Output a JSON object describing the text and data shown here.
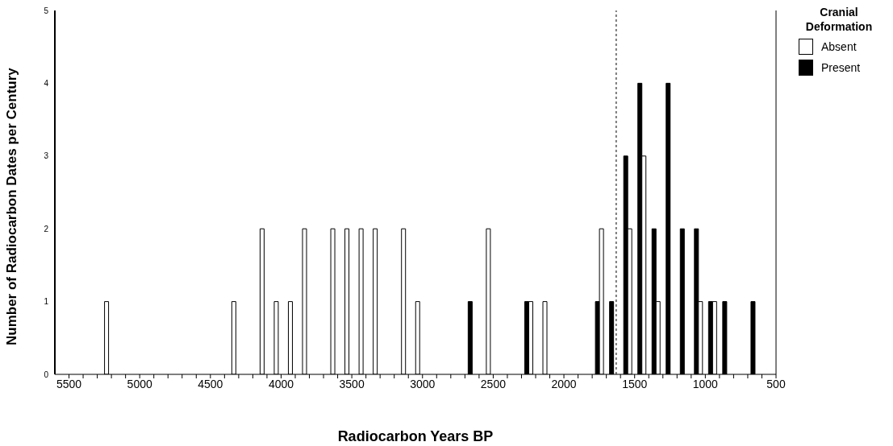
{
  "chart_data": {
    "type": "bar",
    "xlabel": "Radiocarbon Years BP",
    "ylabel": "Number of Radiocarbon Dates per Century",
    "legend_title": "Cranial Deformation",
    "x": [
      5250,
      4350,
      4150,
      4050,
      3950,
      3850,
      3650,
      3550,
      3450,
      3350,
      3150,
      3050,
      2650,
      2550,
      2250,
      2150,
      1750,
      1650,
      1550,
      1450,
      1350,
      1250,
      1150,
      1050,
      950,
      850,
      650
    ],
    "series": [
      {
        "name": "Present",
        "color": "#000000",
        "values": [
          0,
          0,
          0,
          0,
          0,
          0,
          0,
          0,
          0,
          0,
          0,
          0,
          1,
          0,
          1,
          0,
          1,
          1,
          3,
          4,
          2,
          4,
          2,
          2,
          1,
          1,
          1
        ]
      },
      {
        "name": "Absent",
        "color": "#ffffff",
        "values": [
          1,
          1,
          2,
          1,
          1,
          2,
          2,
          2,
          2,
          2,
          2,
          1,
          0,
          2,
          1,
          1,
          2,
          0,
          2,
          3,
          1,
          0,
          0,
          1,
          1,
          0,
          0
        ]
      }
    ],
    "xlim": [
      5600,
      500
    ],
    "xticks": [
      5500,
      {
        "value": 5400,
        "label": null
      },
      {
        "value": 5300,
        "label": null
      },
      {
        "value": 5200,
        "label": null
      },
      {
        "value": 5100,
        "label": null
      },
      5000,
      {
        "value": 4900,
        "label": null
      },
      {
        "value": 4800,
        "label": null
      },
      {
        "value": 4700,
        "label": null
      },
      {
        "value": 4600,
        "label": null
      },
      4500,
      {
        "value": 4400,
        "label": null
      },
      {
        "value": 4300,
        "label": null
      },
      {
        "value": 4200,
        "label": null
      },
      {
        "value": 4100,
        "label": null
      },
      4000,
      {
        "value": 3900,
        "label": null
      },
      {
        "value": 3800,
        "label": null
      },
      {
        "value": 3700,
        "label": null
      },
      {
        "value": 3600,
        "label": null
      },
      3500,
      {
        "value": 3400,
        "label": null
      },
      {
        "value": 3300,
        "label": null
      },
      {
        "value": 3200,
        "label": null
      },
      {
        "value": 3100,
        "label": null
      },
      3000,
      {
        "value": 2900,
        "label": null
      },
      {
        "value": 2800,
        "label": null
      },
      {
        "value": 2700,
        "label": null
      },
      {
        "value": 2600,
        "label": null
      },
      2500,
      {
        "value": 2400,
        "label": null
      },
      {
        "value": 2300,
        "label": null
      },
      {
        "value": 2200,
        "label": null
      },
      {
        "value": 2100,
        "label": null
      },
      2000,
      {
        "value": 1900,
        "label": null
      },
      {
        "value": 1800,
        "label": null
      },
      {
        "value": 1700,
        "label": null
      },
      {
        "value": 1600,
        "label": null
      },
      1500,
      {
        "value": 1400,
        "label": null
      },
      {
        "value": 1300,
        "label": null
      },
      {
        "value": 1200,
        "label": null
      },
      {
        "value": 1100,
        "label": null
      },
      1000,
      {
        "value": 900,
        "label": null
      },
      {
        "value": 800,
        "label": null
      },
      {
        "value": 700,
        "label": null
      },
      {
        "value": 600,
        "label": null
      },
      500
    ],
    "ylim": [
      0,
      5
    ],
    "yticks": [
      0,
      1,
      2,
      3,
      4,
      5
    ],
    "ref_lines": [
      {
        "axis": "x",
        "value": 1630,
        "line_style": "dashed"
      }
    ],
    "legend": "top right"
  }
}
